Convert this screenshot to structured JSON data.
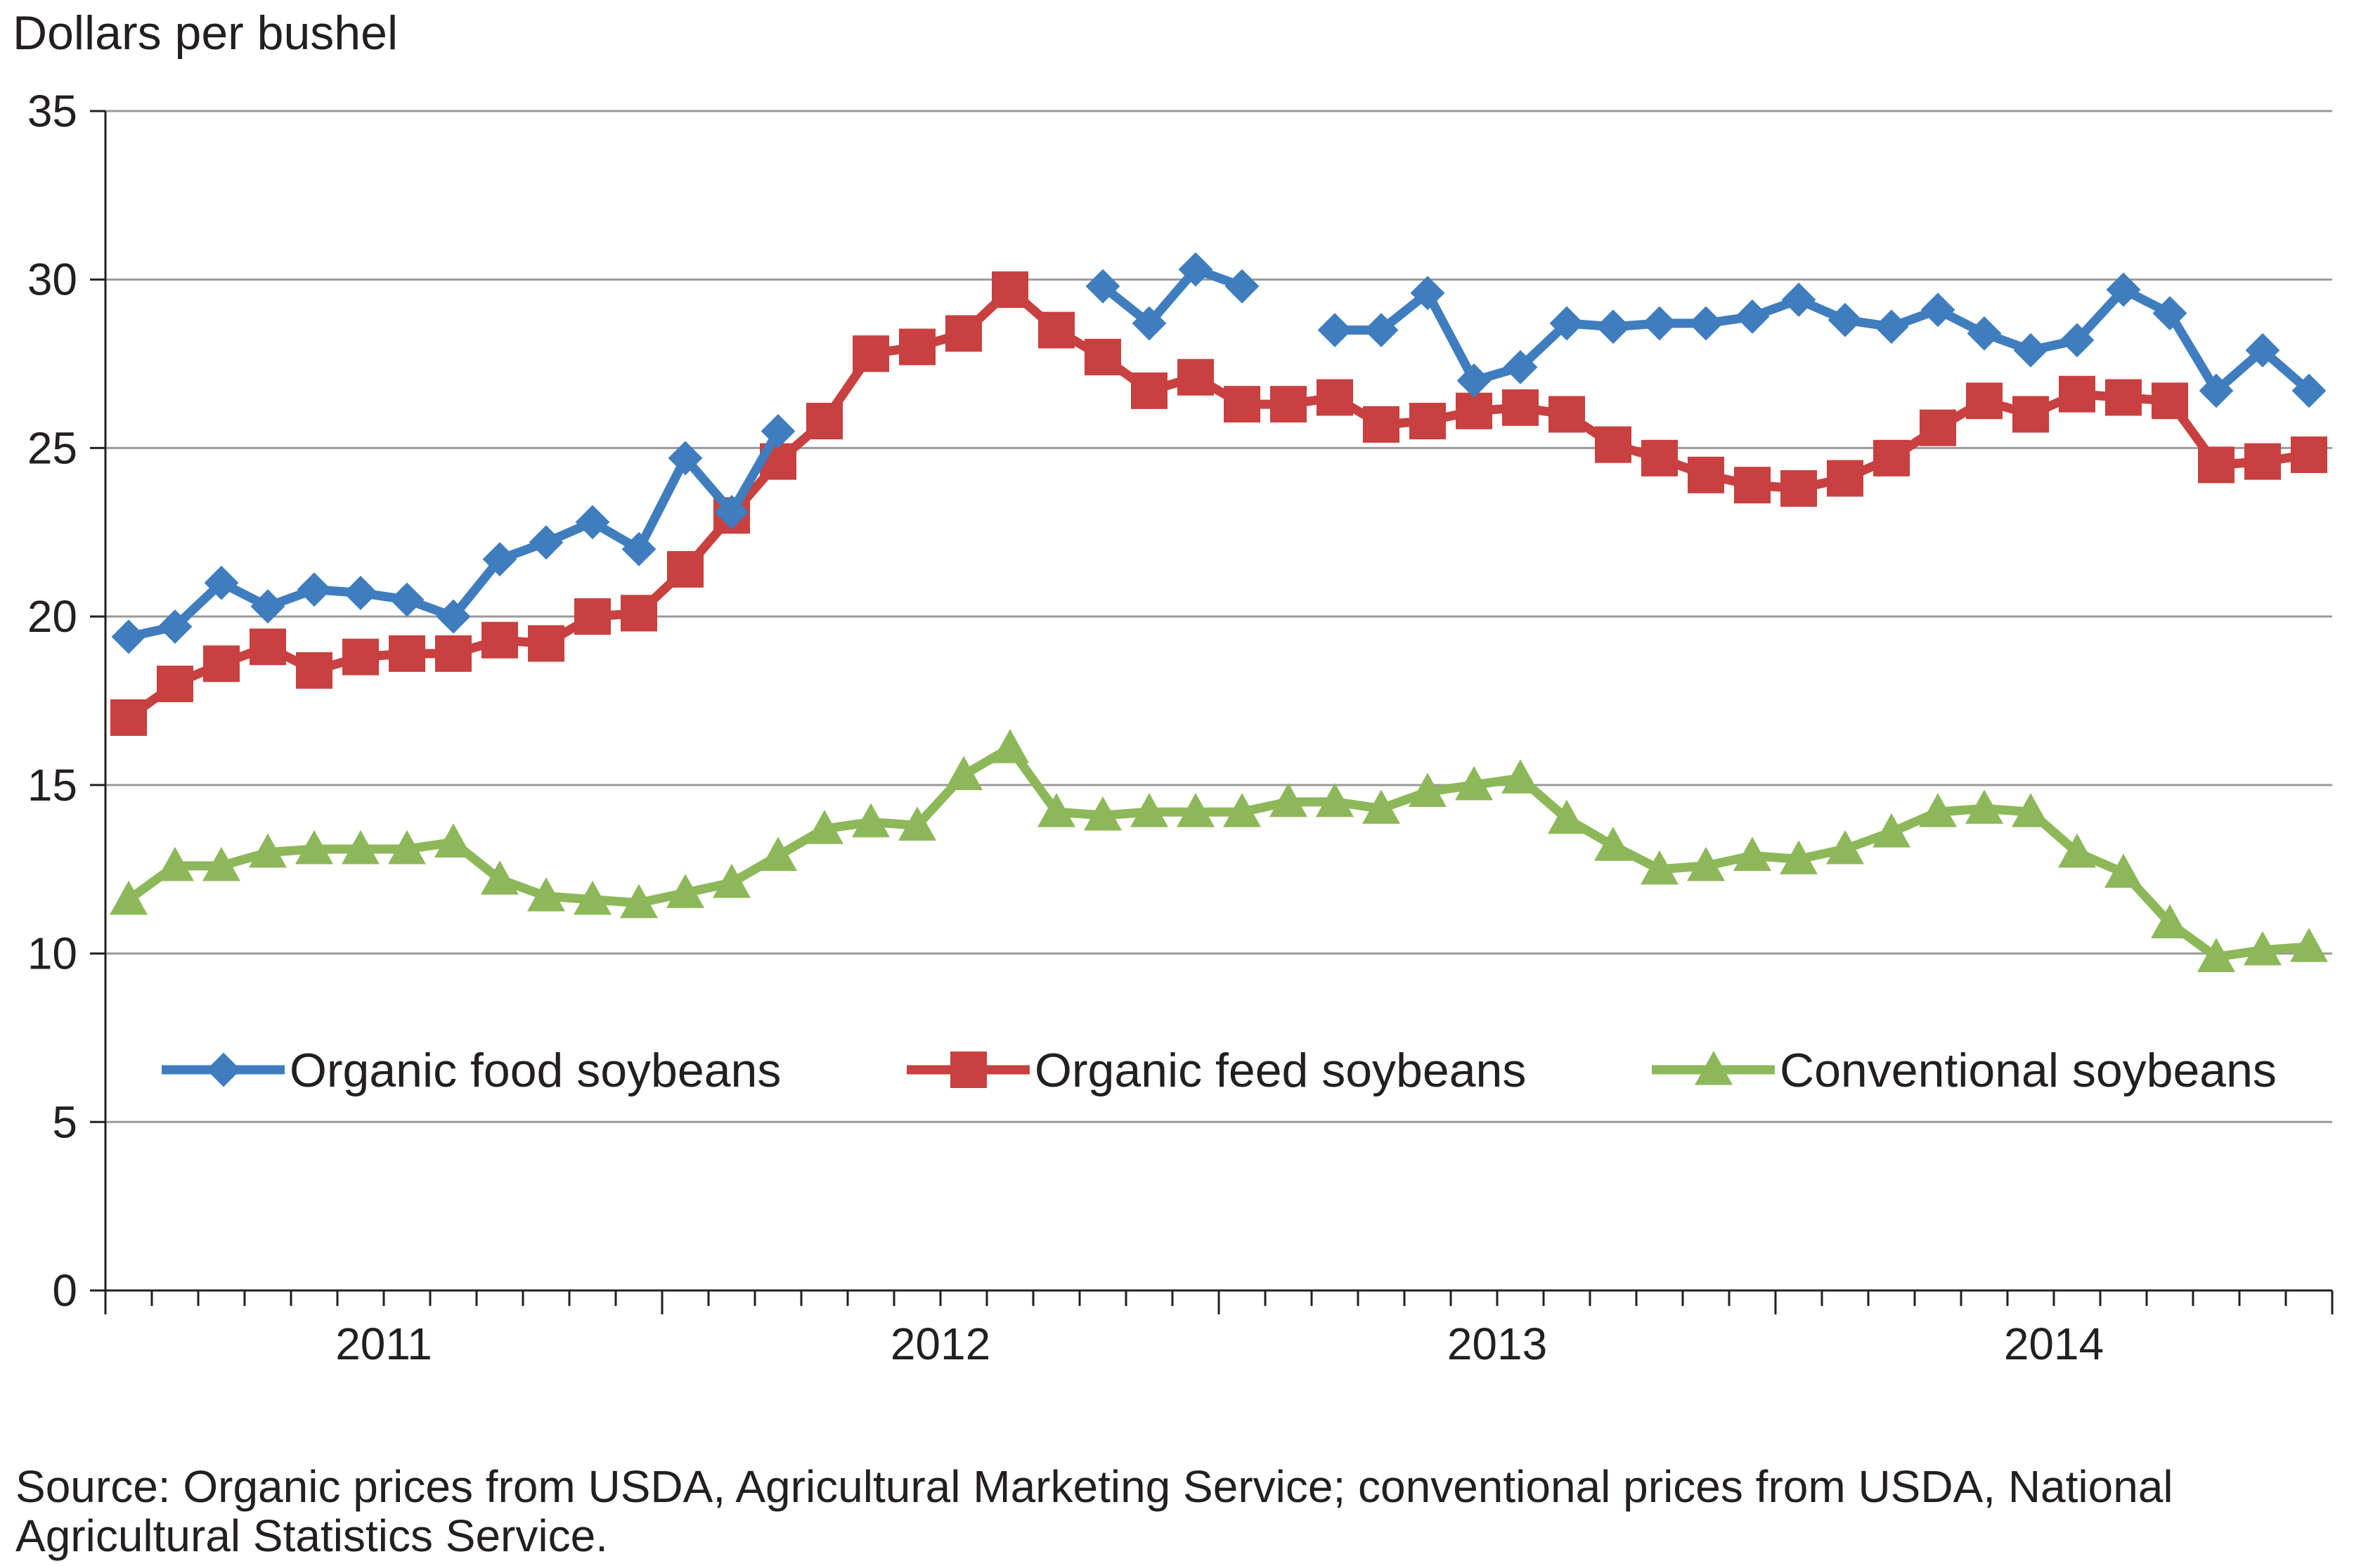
{
  "chart_data": {
    "type": "line",
    "ylabel": "Dollars per bushel",
    "ylim": [
      0,
      35
    ],
    "yticks": [
      0,
      5,
      10,
      15,
      20,
      25,
      30,
      35
    ],
    "yticklabels": [
      "0",
      "5",
      "10",
      "15",
      "20",
      "25",
      "30",
      "35"
    ],
    "grid": true,
    "n_months": 48,
    "year_labels": [
      "2011",
      "2012",
      "2013",
      "2014"
    ],
    "legend_placement": "center, inside plot above the 5 gridline",
    "series": [
      {
        "name": "Organic food soybeans",
        "color": "#3f7dbf",
        "marker": "diamond",
        "values": [
          19.4,
          19.7,
          21.0,
          20.3,
          20.8,
          20.7,
          20.5,
          20.0,
          21.7,
          22.2,
          22.8,
          22.0,
          24.7,
          23.1,
          25.5,
          null,
          null,
          null,
          null,
          null,
          null,
          29.8,
          28.7,
          30.3,
          29.8,
          null,
          28.5,
          28.5,
          29.6,
          27.0,
          27.4,
          28.7,
          28.6,
          28.7,
          28.7,
          28.9,
          29.4,
          28.8,
          28.6,
          29.1,
          28.4,
          27.9,
          28.2,
          29.7,
          29.0,
          26.7,
          27.9,
          26.7
        ]
      },
      {
        "name": "Organic feed soybeans",
        "color": "#c8403f",
        "marker": "square",
        "values": [
          17.0,
          18.0,
          18.6,
          19.1,
          18.4,
          18.8,
          18.9,
          18.9,
          19.3,
          19.2,
          20.0,
          20.1,
          21.4,
          23.0,
          24.6,
          25.8,
          27.8,
          28.0,
          28.4,
          29.7,
          28.5,
          27.7,
          26.7,
          27.1,
          26.3,
          26.3,
          26.5,
          25.7,
          25.8,
          26.1,
          26.2,
          26.0,
          25.1,
          24.7,
          24.2,
          23.9,
          23.8,
          24.1,
          24.7,
          25.6,
          26.4,
          26.0,
          26.6,
          26.5,
          26.4,
          24.5,
          24.6,
          24.8
        ]
      },
      {
        "name": "Conventional soybeans",
        "color": "#8db859",
        "marker": "triangle",
        "values": [
          11.6,
          12.6,
          12.6,
          13.0,
          13.1,
          13.1,
          13.1,
          13.3,
          12.2,
          11.7,
          11.6,
          11.5,
          11.8,
          12.1,
          12.9,
          13.7,
          13.9,
          13.8,
          15.3,
          16.1,
          14.2,
          14.1,
          14.2,
          14.2,
          14.2,
          14.5,
          14.5,
          14.3,
          14.8,
          15.0,
          15.2,
          14.0,
          13.2,
          12.5,
          12.6,
          12.9,
          12.8,
          13.1,
          13.6,
          14.2,
          14.3,
          14.2,
          13.0,
          12.4,
          10.9,
          9.9,
          10.1,
          10.2
        ]
      }
    ]
  },
  "source_note": "Source: Organic prices from USDA, Agricultural Marketing Service; conventional prices from USDA, National Agricultural Statistics Service."
}
